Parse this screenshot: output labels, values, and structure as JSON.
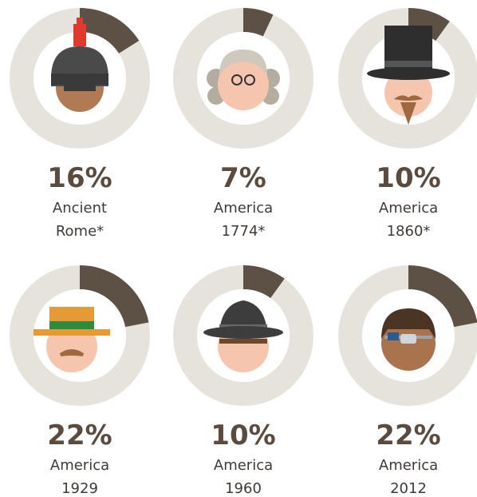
{
  "chart_data": [
    {
      "type": "donut",
      "values": [
        16
      ],
      "value_labels": [
        "16%"
      ],
      "caption": [
        "Ancient",
        "Rome*"
      ],
      "color": "#5d5045",
      "track_color": "#e6e3dc"
    },
    {
      "type": "donut",
      "values": [
        7
      ],
      "value_labels": [
        "7%"
      ],
      "caption": [
        "America",
        "1774*"
      ],
      "color": "#5d5045",
      "track_color": "#e6e3dc"
    },
    {
      "type": "donut",
      "values": [
        10
      ],
      "value_labels": [
        "10%"
      ],
      "caption": [
        "America",
        "1860*"
      ],
      "color": "#5d5045",
      "track_color": "#e6e3dc"
    },
    {
      "type": "donut",
      "values": [
        22
      ],
      "value_labels": [
        "22%"
      ],
      "caption": [
        "America",
        "1929"
      ],
      "color": "#5d5045",
      "track_color": "#e6e3dc"
    },
    {
      "type": "donut",
      "values": [
        10
      ],
      "value_labels": [
        "10%"
      ],
      "caption": [
        "America",
        "1960"
      ],
      "color": "#5d5045",
      "track_color": "#e6e3dc"
    },
    {
      "type": "donut",
      "values": [
        22
      ],
      "value_labels": [
        "22%"
      ],
      "caption": [
        "America",
        "2012"
      ],
      "color": "#5d5045",
      "track_color": "#e6e3dc"
    }
  ]
}
